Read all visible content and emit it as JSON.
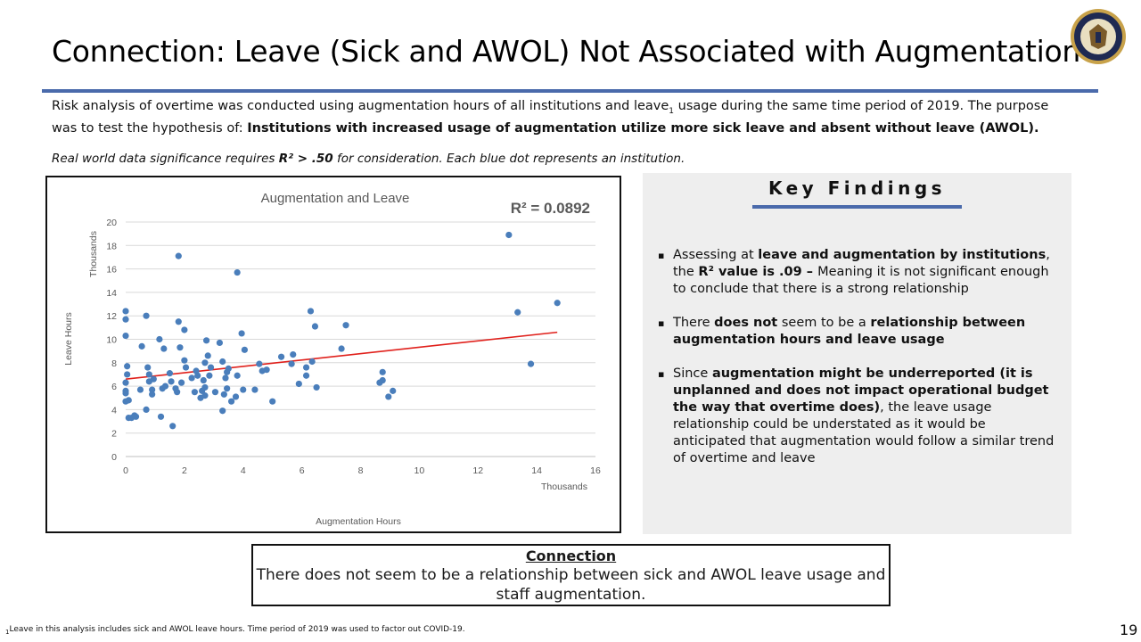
{
  "slide": {
    "title": "Connection: Leave (Sick and AWOL) Not Associated with Augmentation",
    "intro_a": "Risk analysis of overtime was conducted using augmentation hours of all institutions and leave",
    "intro_sub": "1",
    "intro_b": " usage during the same time period of 2019. The purpose was to test the hypothesis of: ",
    "intro_bold": "Institutions with increased usage of augmentation utilize more sick leave and absent without leave (AWOL).",
    "note_a": "Real world data significance requires ",
    "note_bold": "R² > .50",
    "note_b": " for consideration. Each blue dot represents an institution.",
    "page_number": "19",
    "footnote_sub": "1",
    "footnote_text": "Leave in this analysis includes sick and AWOL leave hours. Time period of 2019 was used to factor out COVID-19."
  },
  "key_findings": {
    "title": "Key Findings",
    "items": [
      {
        "p1": "Assessing at ",
        "b1": "leave and augmentation by institutions",
        "p2": ", the ",
        "b2": "R²  value is .09 – ",
        "p3": "Meaning it is not significant enough to conclude that there is a strong relationship"
      },
      {
        "p1": "There ",
        "b1": "does not",
        "p2": " seem to be a ",
        "b2": "relationship between augmentation hours and leave usage",
        "p3": ""
      },
      {
        "p1": "Since ",
        "b1": "augmentation might be underreported (it is unplanned and does not impact operational budget the way that overtime does)",
        "p2": ", the leave usage relationship could be understated as it would be anticipated that augmentation would follow a similar trend of overtime and leave",
        "b2": "",
        "p3": ""
      }
    ]
  },
  "connection": {
    "title": "Connection",
    "text": "There does not seem to be a relationship between sick and AWOL leave usage and staff augmentation."
  },
  "colors": {
    "point": "#4a7ebb",
    "trendline": "#e0201b",
    "accent_rule": "#4a6aab"
  },
  "chart_data": {
    "type": "scatter",
    "title": "Augmentation and Leave",
    "annotation": "R² = 0.0892",
    "xlabel": "Augmentation Hours",
    "ylabel": "Leave Hours",
    "x_units_label": "Thousands",
    "y_units_label": "Thousands",
    "xlim": [
      0,
      16
    ],
    "ylim": [
      0,
      20
    ],
    "xticks": [
      0,
      2,
      4,
      6,
      8,
      10,
      12,
      14,
      16
    ],
    "yticks": [
      0,
      2,
      4,
      6,
      8,
      10,
      12,
      14,
      16,
      18,
      20
    ],
    "grid": "horizontal",
    "trendline": {
      "x": [
        0,
        14.7
      ],
      "y": [
        6.6,
        10.6
      ]
    },
    "points": [
      [
        0.0,
        12.4
      ],
      [
        0.0,
        11.7
      ],
      [
        0.0,
        10.3
      ],
      [
        0.05,
        7.7
      ],
      [
        0.05,
        7.0
      ],
      [
        0.0,
        6.3
      ],
      [
        0.0,
        5.6
      ],
      [
        0.0,
        5.4
      ],
      [
        0.0,
        4.7
      ],
      [
        0.1,
        4.8
      ],
      [
        0.1,
        3.3
      ],
      [
        0.2,
        3.3
      ],
      [
        0.3,
        3.5
      ],
      [
        0.35,
        3.4
      ],
      [
        0.5,
        5.7
      ],
      [
        0.55,
        9.4
      ],
      [
        0.7,
        12.0
      ],
      [
        0.7,
        4.0
      ],
      [
        0.75,
        7.6
      ],
      [
        0.8,
        6.4
      ],
      [
        0.8,
        7.0
      ],
      [
        0.9,
        5.7
      ],
      [
        0.9,
        5.3
      ],
      [
        0.95,
        6.6
      ],
      [
        1.15,
        10.0
      ],
      [
        1.2,
        3.4
      ],
      [
        1.25,
        5.8
      ],
      [
        1.3,
        9.2
      ],
      [
        1.35,
        6.0
      ],
      [
        1.5,
        7.1
      ],
      [
        1.55,
        6.4
      ],
      [
        1.6,
        2.6
      ],
      [
        1.7,
        5.8
      ],
      [
        1.75,
        5.5
      ],
      [
        1.8,
        11.5
      ],
      [
        1.8,
        17.1
      ],
      [
        1.85,
        9.3
      ],
      [
        1.9,
        6.3
      ],
      [
        2.0,
        10.8
      ],
      [
        2.0,
        8.2
      ],
      [
        2.05,
        7.6
      ],
      [
        2.25,
        6.7
      ],
      [
        2.35,
        5.5
      ],
      [
        2.4,
        7.3
      ],
      [
        2.45,
        6.9
      ],
      [
        2.55,
        5.0
      ],
      [
        2.6,
        5.6
      ],
      [
        2.65,
        6.5
      ],
      [
        2.7,
        8.0
      ],
      [
        2.7,
        5.2
      ],
      [
        2.7,
        5.9
      ],
      [
        2.75,
        9.9
      ],
      [
        2.8,
        8.6
      ],
      [
        2.85,
        6.9
      ],
      [
        2.9,
        7.6
      ],
      [
        3.05,
        5.5
      ],
      [
        3.2,
        9.7
      ],
      [
        3.3,
        3.9
      ],
      [
        3.3,
        8.1
      ],
      [
        3.35,
        5.3
      ],
      [
        3.4,
        6.7
      ],
      [
        3.45,
        7.2
      ],
      [
        3.45,
        5.8
      ],
      [
        3.5,
        7.5
      ],
      [
        3.6,
        4.7
      ],
      [
        3.75,
        5.1
      ],
      [
        3.8,
        15.7
      ],
      [
        3.8,
        6.9
      ],
      [
        3.95,
        10.5
      ],
      [
        4.0,
        5.7
      ],
      [
        4.05,
        9.1
      ],
      [
        4.4,
        5.7
      ],
      [
        4.55,
        7.9
      ],
      [
        4.65,
        7.3
      ],
      [
        4.8,
        7.4
      ],
      [
        5.0,
        4.7
      ],
      [
        5.3,
        8.5
      ],
      [
        5.65,
        7.9
      ],
      [
        5.7,
        8.7
      ],
      [
        5.9,
        6.2
      ],
      [
        6.15,
        7.6
      ],
      [
        6.15,
        6.9
      ],
      [
        6.3,
        12.4
      ],
      [
        6.35,
        8.1
      ],
      [
        6.45,
        11.1
      ],
      [
        6.5,
        5.9
      ],
      [
        7.35,
        9.2
      ],
      [
        7.5,
        11.2
      ],
      [
        8.65,
        6.3
      ],
      [
        8.75,
        6.5
      ],
      [
        8.75,
        7.2
      ],
      [
        8.95,
        5.1
      ],
      [
        9.1,
        5.6
      ],
      [
        13.05,
        18.9
      ],
      [
        13.35,
        12.3
      ],
      [
        13.8,
        7.9
      ],
      [
        14.7,
        13.1
      ]
    ]
  }
}
